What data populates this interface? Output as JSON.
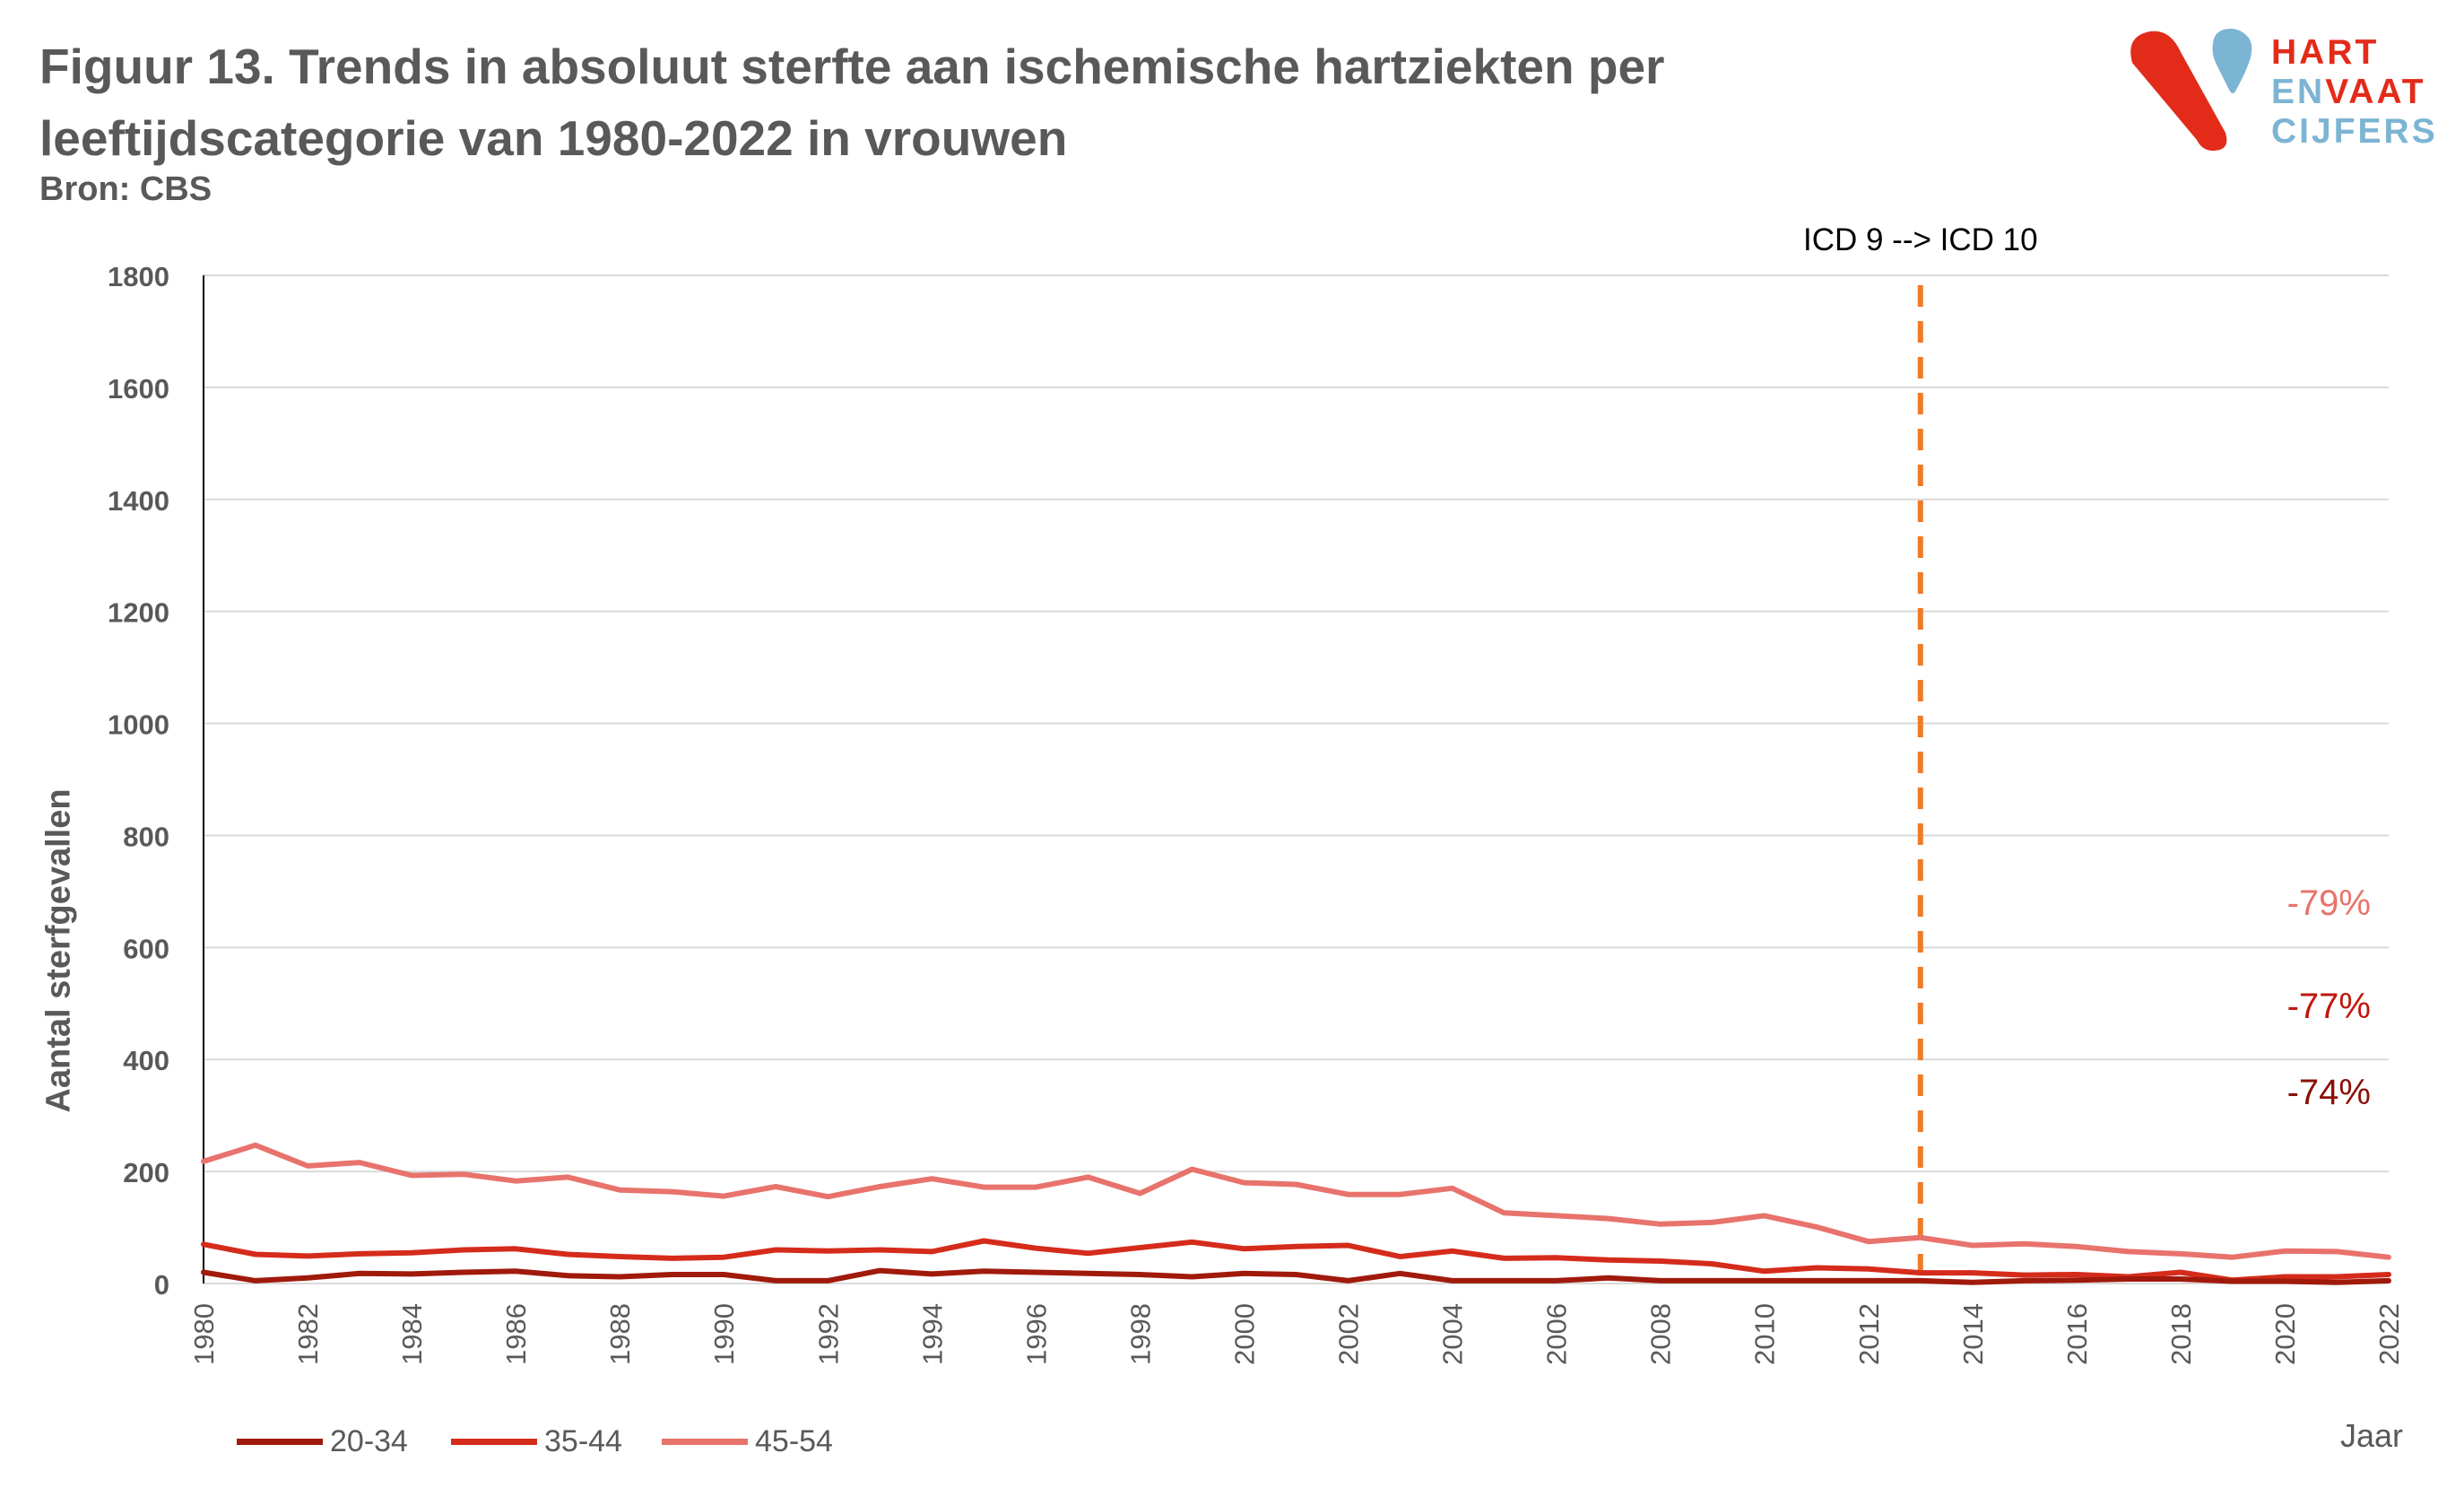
{
  "title_line1": "Figuur 13. Trends in absoluut sterfte aan ischemische hartziekten per",
  "title_line2": "leeftijdscategorie van 1980-2022 in vrouwen",
  "source": "Bron: CBS",
  "logo": {
    "line1_a": "HART",
    "line2_a": "EN",
    "line2_b": "VAAT",
    "line3_a": "CIJFERS",
    "colors": {
      "red": "#e32b1a",
      "blue": "#7cb4d3"
    }
  },
  "chart_data": {
    "type": "line",
    "title": "Figuur 13. Trends in absoluut sterfte aan ischemische hartziekten per leeftijdscategorie van 1980-2022 in vrouwen",
    "xlabel": "Jaar",
    "ylabel": "Aantal sterfgevallen",
    "ylim": [
      0,
      1800
    ],
    "yticks": [
      0,
      200,
      400,
      600,
      800,
      1000,
      1200,
      1400,
      1600,
      1800
    ],
    "xlim": [
      1980,
      2022
    ],
    "xticks": [
      1980,
      1982,
      1984,
      1986,
      1988,
      1990,
      1992,
      1994,
      1996,
      1998,
      2000,
      2002,
      2004,
      2006,
      2008,
      2010,
      2012,
      2014,
      2016,
      2018,
      2020,
      2022
    ],
    "grid": true,
    "legend_position": "bottom-left",
    "x": [
      1980,
      1981,
      1982,
      1983,
      1984,
      1985,
      1986,
      1987,
      1988,
      1989,
      1990,
      1991,
      1992,
      1993,
      1994,
      1995,
      1996,
      1997,
      1998,
      1999,
      2000,
      2001,
      2002,
      2003,
      2004,
      2005,
      2006,
      2007,
      2008,
      2009,
      2010,
      2011,
      2012,
      2013,
      2014,
      2015,
      2016,
      2017,
      2018,
      2019,
      2020,
      2021,
      2022
    ],
    "series": [
      {
        "name": "20-34",
        "color": "#a01a0c",
        "values": [
          20,
          5,
          10,
          18,
          17,
          20,
          22,
          14,
          12,
          16,
          16,
          5,
          5,
          23,
          17,
          22,
          20,
          18,
          16,
          12,
          18,
          16,
          5,
          18,
          5,
          5,
          5,
          10,
          5,
          5,
          5,
          5,
          5,
          5,
          2,
          5,
          6,
          8,
          8,
          4,
          4,
          2,
          5
        ]
      },
      {
        "name": "35-44",
        "color": "#d52b1b",
        "values": [
          70,
          52,
          49,
          53,
          55,
          60,
          62,
          52,
          48,
          45,
          47,
          60,
          58,
          60,
          57,
          76,
          63,
          54,
          64,
          74,
          62,
          66,
          68,
          48,
          58,
          45,
          46,
          42,
          40,
          35,
          22,
          28,
          26,
          19,
          19,
          15,
          16,
          12,
          20,
          6,
          12,
          12,
          16
        ]
      },
      {
        "name": "45-54",
        "color": "#e8736c",
        "values": [
          218,
          247,
          210,
          216,
          193,
          195,
          183,
          190,
          167,
          164,
          156,
          173,
          155,
          173,
          187,
          172,
          172,
          190,
          161,
          204,
          180,
          177,
          159,
          159,
          170,
          126,
          121,
          116,
          106,
          109,
          121,
          101,
          75,
          82,
          68,
          71,
          66,
          57,
          53,
          47,
          58,
          57,
          47
        ]
      }
    ],
    "annotations": [
      {
        "text": "ICD 9  --> ICD 10",
        "x": 2013,
        "style": "dashed-vertical",
        "color": "#f07a26"
      },
      {
        "text": "-79%",
        "series": "45-54",
        "color": "#e8736c"
      },
      {
        "text": "-77%",
        "series": "35-44",
        "color": "#c0170e"
      },
      {
        "text": "-74%",
        "series": "20-34",
        "color": "#8b0f08"
      }
    ]
  }
}
